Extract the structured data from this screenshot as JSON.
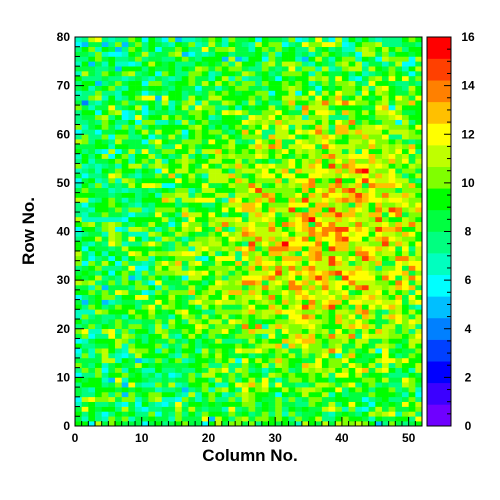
{
  "chart_data": {
    "type": "heatmap",
    "title": "",
    "xlabel": "Column No.",
    "ylabel": "Row No.",
    "x_bins": 52,
    "y_bins": 80,
    "xlim": [
      0,
      52
    ],
    "ylim": [
      0,
      80
    ],
    "zlim": [
      0,
      16
    ],
    "x_ticks": [
      "0",
      "10",
      "20",
      "30",
      "40",
      "50"
    ],
    "y_ticks": [
      "0",
      "10",
      "20",
      "30",
      "40",
      "50",
      "60",
      "70",
      "80"
    ],
    "colorbar_ticks": [
      "0",
      "2",
      "4",
      "6",
      "8",
      "10",
      "12",
      "14",
      "16"
    ],
    "colorbar_position": "right",
    "grid": false,
    "colormap": [
      "#6f00ff",
      "#3b00ff",
      "#0000ff",
      "#0040ff",
      "#0080ff",
      "#00bfff",
      "#00ffff",
      "#00ffbf",
      "#00ff80",
      "#00ff40",
      "#00ff00",
      "#80ff00",
      "#bfff00",
      "#ffff00",
      "#ffc000",
      "#ff8000",
      "#ff4000",
      "#ff0000"
    ],
    "value_model": {
      "description": "per-cell count distribution (noisy Poisson-like around a smooth mean surface)",
      "mean_left_bottom": 8.5,
      "mean_left_top": 8.0,
      "mean_right_center": 12.0,
      "mean_center_column": 38,
      "mean_center_row": 40,
      "noise_amplitude": 3.0,
      "seed": 7
    }
  }
}
